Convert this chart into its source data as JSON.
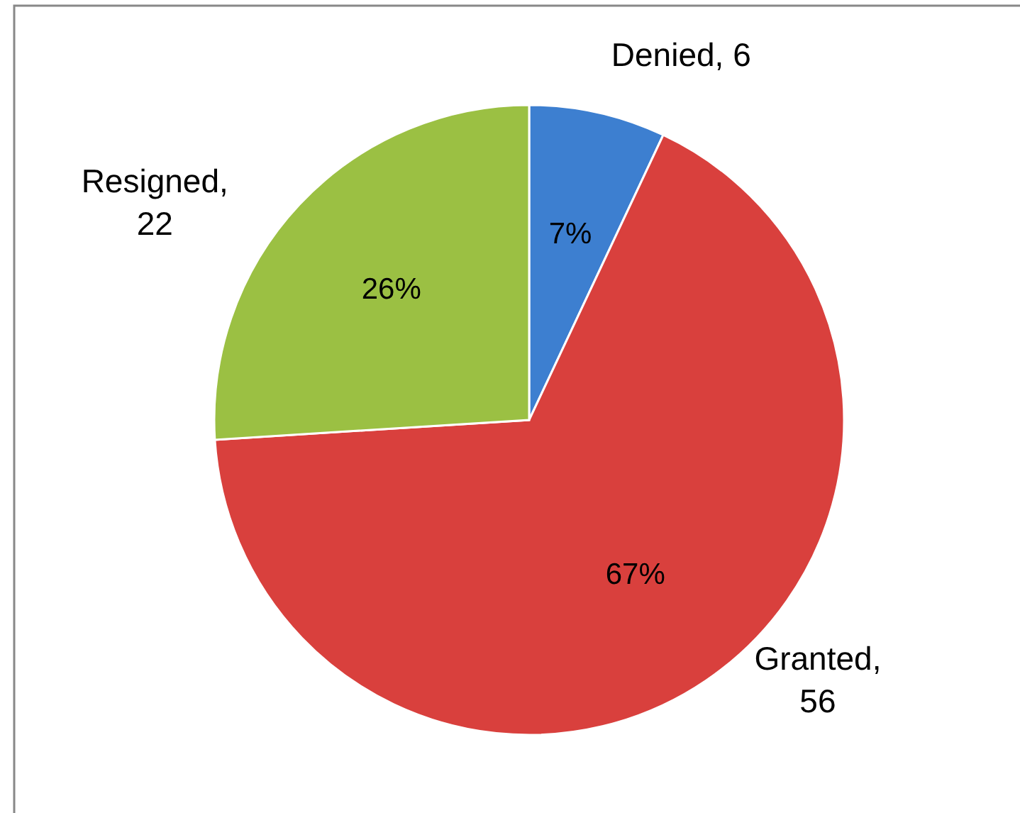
{
  "chart_data": {
    "type": "pie",
    "categories": [
      "Denied, 6",
      "Granted, 56",
      "Resigned, 22"
    ],
    "values": [
      7,
      67,
      26
    ],
    "colors": [
      "#3d7fd0",
      "#d9403d",
      "#9bc043"
    ],
    "value_labels": [
      "7%",
      "67%",
      "26%"
    ]
  }
}
